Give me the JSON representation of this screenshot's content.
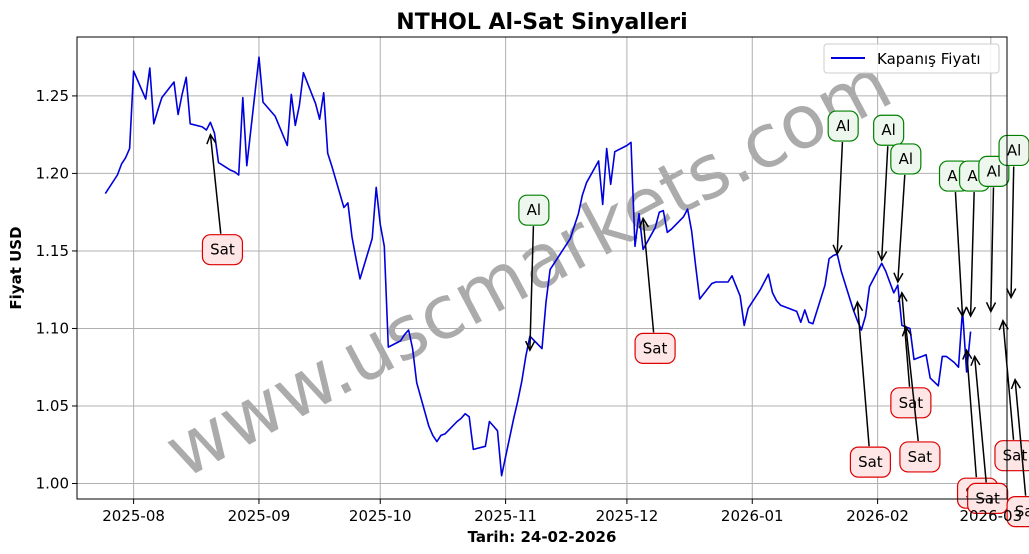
{
  "chart_data": {
    "type": "line",
    "title": "NTHOL Al-Sat Sinyalleri",
    "xlabel": "Tarih: 24-02-2026",
    "ylabel": "Fiyat USD",
    "ylim": [
      0.99,
      1.288
    ],
    "xlim": [
      "2025-07-18",
      "2026-03-05"
    ],
    "grid": true,
    "legend_position": "top-right",
    "watermark": "www.uscmarkets.com",
    "x_tick_labels": [
      "2025-08",
      "2025-09",
      "2025-10",
      "2025-11",
      "2025-12",
      "2026-01",
      "2026-02",
      "2026-03"
    ],
    "y_tick_labels": [
      "1.00",
      "1.05",
      "1.10",
      "1.15",
      "1.20",
      "1.25"
    ],
    "series": [
      {
        "name": "Kapanış Fiyatı",
        "color": "#0000dd",
        "points": [
          [
            "2025-07-25",
            1.187
          ],
          [
            "2025-07-28",
            1.199
          ],
          [
            "2025-07-29",
            1.206
          ],
          [
            "2025-07-30",
            1.21
          ],
          [
            "2025-07-31",
            1.216
          ],
          [
            "2025-08-01",
            1.266
          ],
          [
            "2025-08-04",
            1.248
          ],
          [
            "2025-08-05",
            1.268
          ],
          [
            "2025-08-06",
            1.232
          ],
          [
            "2025-08-07",
            1.241
          ],
          [
            "2025-08-08",
            1.249
          ],
          [
            "2025-08-11",
            1.259
          ],
          [
            "2025-08-12",
            1.238
          ],
          [
            "2025-08-13",
            1.251
          ],
          [
            "2025-08-14",
            1.262
          ],
          [
            "2025-08-15",
            1.232
          ],
          [
            "2025-08-18",
            1.23
          ],
          [
            "2025-08-19",
            1.228
          ],
          [
            "2025-08-20",
            1.233
          ],
          [
            "2025-08-21",
            1.226
          ],
          [
            "2025-08-22",
            1.207
          ],
          [
            "2025-08-25",
            1.202
          ],
          [
            "2025-08-26",
            1.201
          ],
          [
            "2025-08-27",
            1.199
          ],
          [
            "2025-08-28",
            1.249
          ],
          [
            "2025-08-29",
            1.205
          ],
          [
            "2025-09-01",
            1.275
          ],
          [
            "2025-09-02",
            1.246
          ],
          [
            "2025-09-05",
            1.237
          ],
          [
            "2025-09-08",
            1.218
          ],
          [
            "2025-09-09",
            1.251
          ],
          [
            "2025-09-10",
            1.231
          ],
          [
            "2025-09-11",
            1.244
          ],
          [
            "2025-09-12",
            1.265
          ],
          [
            "2025-09-15",
            1.245
          ],
          [
            "2025-09-16",
            1.235
          ],
          [
            "2025-09-17",
            1.252
          ],
          [
            "2025-09-18",
            1.213
          ],
          [
            "2025-09-19",
            1.205
          ],
          [
            "2025-09-22",
            1.178
          ],
          [
            "2025-09-23",
            1.181
          ],
          [
            "2025-09-24",
            1.159
          ],
          [
            "2025-09-25",
            1.145
          ],
          [
            "2025-09-26",
            1.132
          ],
          [
            "2025-09-29",
            1.158
          ],
          [
            "2025-09-30",
            1.191
          ],
          [
            "2025-10-01",
            1.167
          ],
          [
            "2025-10-02",
            1.153
          ],
          [
            "2025-10-03",
            1.088
          ],
          [
            "2025-10-06",
            1.092
          ],
          [
            "2025-10-07",
            1.096
          ],
          [
            "2025-10-08",
            1.099
          ],
          [
            "2025-10-09",
            1.087
          ],
          [
            "2025-10-10",
            1.065
          ],
          [
            "2025-10-13",
            1.037
          ],
          [
            "2025-10-14",
            1.031
          ],
          [
            "2025-10-15",
            1.027
          ],
          [
            "2025-10-16",
            1.031
          ],
          [
            "2025-10-17",
            1.032
          ],
          [
            "2025-10-20",
            1.04
          ],
          [
            "2025-10-21",
            1.042
          ],
          [
            "2025-10-22",
            1.045
          ],
          [
            "2025-10-23",
            1.043
          ],
          [
            "2025-10-24",
            1.022
          ],
          [
            "2025-10-27",
            1.024
          ],
          [
            "2025-10-28",
            1.04
          ],
          [
            "2025-10-29",
            1.037
          ],
          [
            "2025-10-30",
            1.034
          ],
          [
            "2025-10-31",
            1.005
          ],
          [
            "2025-11-03",
            1.042
          ],
          [
            "2025-11-04",
            1.053
          ],
          [
            "2025-11-05",
            1.066
          ],
          [
            "2025-11-06",
            1.082
          ],
          [
            "2025-11-07",
            1.095
          ],
          [
            "2025-11-10",
            1.087
          ],
          [
            "2025-11-11",
            1.117
          ],
          [
            "2025-11-12",
            1.138
          ],
          [
            "2025-11-17",
            1.158
          ],
          [
            "2025-11-18",
            1.166
          ],
          [
            "2025-11-19",
            1.174
          ],
          [
            "2025-11-20",
            1.186
          ],
          [
            "2025-11-21",
            1.194
          ],
          [
            "2025-11-24",
            1.208
          ],
          [
            "2025-11-25",
            1.18
          ],
          [
            "2025-11-26",
            1.216
          ],
          [
            "2025-11-27",
            1.193
          ],
          [
            "2025-11-28",
            1.214
          ],
          [
            "2025-12-01",
            1.218
          ],
          [
            "2025-12-02",
            1.22
          ],
          [
            "2025-12-03",
            1.153
          ],
          [
            "2025-12-04",
            1.174
          ],
          [
            "2025-12-05",
            1.151
          ],
          [
            "2025-12-08",
            1.165
          ],
          [
            "2025-12-09",
            1.175
          ],
          [
            "2025-12-10",
            1.176
          ],
          [
            "2025-12-11",
            1.162
          ],
          [
            "2025-12-12",
            1.164
          ],
          [
            "2025-12-15",
            1.172
          ],
          [
            "2025-12-16",
            1.177
          ],
          [
            "2025-12-17",
            1.163
          ],
          [
            "2025-12-18",
            1.14
          ],
          [
            "2025-12-19",
            1.119
          ],
          [
            "2025-12-22",
            1.129
          ],
          [
            "2025-12-23",
            1.13
          ],
          [
            "2025-12-26",
            1.13
          ],
          [
            "2025-12-27",
            1.134
          ],
          [
            "2025-12-29",
            1.121
          ],
          [
            "2025-12-30",
            1.102
          ],
          [
            "2025-12-31",
            1.113
          ],
          [
            "2026-01-03",
            1.125
          ],
          [
            "2026-01-05",
            1.135
          ],
          [
            "2026-01-06",
            1.123
          ],
          [
            "2026-01-07",
            1.118
          ],
          [
            "2026-01-08",
            1.115
          ],
          [
            "2026-01-09",
            1.114
          ],
          [
            "2026-01-12",
            1.111
          ],
          [
            "2026-01-13",
            1.104
          ],
          [
            "2026-01-14",
            1.112
          ],
          [
            "2026-01-15",
            1.104
          ],
          [
            "2026-01-16",
            1.103
          ],
          [
            "2026-01-19",
            1.128
          ],
          [
            "2026-01-20",
            1.145
          ],
          [
            "2026-01-21",
            1.147
          ],
          [
            "2026-01-22",
            1.148
          ],
          [
            "2026-01-23",
            1.137
          ],
          [
            "2026-01-26",
            1.112
          ],
          [
            "2026-01-27",
            1.105
          ],
          [
            "2026-01-28",
            1.099
          ],
          [
            "2026-01-29",
            1.108
          ],
          [
            "2026-01-30",
            1.127
          ],
          [
            "2026-02-02",
            1.142
          ],
          [
            "2026-02-03",
            1.137
          ],
          [
            "2026-02-04",
            1.13
          ],
          [
            "2026-02-05",
            1.123
          ],
          [
            "2026-02-06",
            1.128
          ],
          [
            "2026-02-07",
            1.102
          ],
          [
            "2026-02-09",
            1.1
          ],
          [
            "2026-02-10",
            1.08
          ],
          [
            "2026-02-11",
            1.081
          ],
          [
            "2026-02-12",
            1.082
          ],
          [
            "2026-02-13",
            1.083
          ],
          [
            "2026-02-14",
            1.068
          ],
          [
            "2026-02-16",
            1.063
          ],
          [
            "2026-02-17",
            1.082
          ],
          [
            "2026-02-18",
            1.082
          ],
          [
            "2026-02-19",
            1.08
          ],
          [
            "2026-02-20",
            1.078
          ],
          [
            "2026-02-21",
            1.075
          ],
          [
            "2026-02-22",
            1.112
          ],
          [
            "2026-02-23",
            1.072
          ],
          [
            "2026-02-24",
            1.098
          ]
        ]
      }
    ],
    "annotations": [
      {
        "label": "Sat",
        "type": "sell",
        "date": "2025-08-20",
        "price": 1.225
      },
      {
        "label": "Al",
        "type": "buy",
        "date": "2025-11-07",
        "price": 1.086
      },
      {
        "label": "Sat",
        "type": "sell",
        "date": "2025-12-05",
        "price": 1.171
      },
      {
        "label": "Al",
        "type": "buy",
        "date": "2026-01-22",
        "price": 1.148
      },
      {
        "label": "Sat",
        "type": "sell",
        "date": "2026-01-27",
        "price": 1.117
      },
      {
        "label": "Al",
        "type": "buy",
        "date": "2026-02-02",
        "price": 1.144
      },
      {
        "label": "Al",
        "type": "buy",
        "date": "2026-02-06",
        "price": 1.13
      },
      {
        "label": "Sat",
        "type": "sell",
        "date": "2026-02-07",
        "price": 1.123
      },
      {
        "label": "Sat",
        "type": "sell",
        "date": "2026-02-08",
        "price": 1.101
      },
      {
        "label": "Al",
        "type": "buy",
        "date": "2026-02-22",
        "price": 1.108
      },
      {
        "label": "Sat",
        "type": "sell",
        "date": "2026-02-23",
        "price": 1.086
      },
      {
        "label": "Al",
        "type": "buy",
        "date": "2026-02-24",
        "price": 1.108
      },
      {
        "label": "Sat",
        "type": "sell",
        "date": "2026-02-25",
        "price": 1.082
      },
      {
        "label": "Al",
        "type": "buy",
        "date": "2026-03-01",
        "price": 1.111
      },
      {
        "label": "Sat",
        "type": "sell",
        "date": "2026-03-04",
        "price": 1.105
      },
      {
        "label": "Al",
        "type": "buy",
        "date": "2026-03-06",
        "price": 1.12
      },
      {
        "label": "Sat",
        "type": "sell",
        "date": "2026-03-07",
        "price": 1.067
      }
    ],
    "colors": {
      "line": "#0000dd",
      "buy_border": "#008000",
      "buy_fill": "#eef7ee",
      "sell_border": "#dd0000",
      "sell_fill": "#ffe6e6",
      "grid": "#b0b0b0"
    }
  }
}
